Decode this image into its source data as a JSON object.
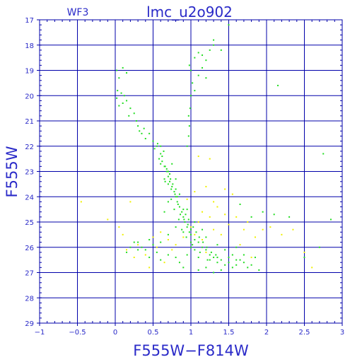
{
  "chart_data": {
    "type": "scatter",
    "title": "lmc_u2o902",
    "chip": "WF3",
    "xlabel": "F555W−F814W",
    "ylabel": "F555W",
    "xlim": [
      -1,
      3
    ],
    "ylim": [
      29,
      17
    ],
    "y_inverted": true,
    "xticks": [
      "−1",
      "−0.5",
      "0",
      "0.5",
      "1",
      "1.5",
      "2",
      "2.5",
      "3"
    ],
    "yticks": [
      "17",
      "18",
      "19",
      "20",
      "21",
      "22",
      "23",
      "24",
      "25",
      "26",
      "27",
      "28",
      "29"
    ],
    "grid": true,
    "colors": {
      "frame": "#0000aa",
      "text": "#2a2ac8",
      "main": "#22dd22",
      "faint": "#f0f000"
    },
    "series": [
      {
        "color": "#22dd22",
        "points": [
          [
            0.02,
            19.0
          ],
          [
            0.1,
            18.9
          ],
          [
            0.15,
            19.1
          ],
          [
            0.05,
            19.3
          ],
          [
            0.03,
            19.8
          ],
          [
            0.08,
            19.9
          ],
          [
            0.12,
            20.0
          ],
          [
            0.02,
            20.1
          ],
          [
            0.1,
            20.3
          ],
          [
            0.15,
            20.2
          ],
          [
            0.05,
            20.4
          ],
          [
            0.2,
            20.5
          ],
          [
            0.18,
            20.8
          ],
          [
            0.25,
            20.7
          ],
          [
            0.28,
            21.0
          ],
          [
            0.3,
            21.2
          ],
          [
            0.35,
            21.5
          ],
          [
            0.32,
            21.4
          ],
          [
            0.4,
            21.7
          ],
          [
            0.38,
            21.3
          ],
          [
            0.45,
            21.5
          ],
          [
            0.5,
            21.8
          ],
          [
            0.52,
            22.1
          ],
          [
            0.55,
            22.0
          ],
          [
            0.6,
            22.3
          ],
          [
            0.58,
            22.5
          ],
          [
            0.62,
            22.6
          ],
          [
            0.65,
            22.8
          ],
          [
            0.6,
            22.7
          ],
          [
            0.68,
            23.0
          ],
          [
            0.7,
            23.2
          ],
          [
            0.65,
            23.3
          ],
          [
            0.72,
            23.4
          ],
          [
            0.75,
            23.6
          ],
          [
            0.7,
            23.5
          ],
          [
            0.78,
            23.8
          ],
          [
            0.8,
            24.0
          ],
          [
            0.74,
            24.1
          ],
          [
            0.82,
            24.2
          ],
          [
            0.85,
            24.4
          ],
          [
            0.78,
            24.5
          ],
          [
            0.88,
            24.6
          ],
          [
            0.9,
            24.8
          ],
          [
            0.84,
            24.9
          ],
          [
            0.92,
            25.0
          ],
          [
            0.95,
            25.2
          ],
          [
            0.88,
            25.3
          ],
          [
            0.98,
            25.4
          ],
          [
            1.0,
            25.5
          ],
          [
            0.94,
            25.6
          ],
          [
            1.05,
            25.7
          ],
          [
            1.1,
            25.8
          ],
          [
            1.02,
            25.9
          ],
          [
            1.15,
            26.0
          ],
          [
            1.2,
            26.1
          ],
          [
            1.12,
            26.2
          ],
          [
            1.25,
            26.3
          ],
          [
            1.3,
            26.4
          ],
          [
            1.22,
            26.5
          ],
          [
            1.35,
            26.6
          ],
          [
            1.4,
            26.5
          ],
          [
            1.45,
            26.7
          ],
          [
            1.5,
            26.6
          ],
          [
            1.55,
            26.8
          ],
          [
            1.6,
            26.7
          ],
          [
            1.65,
            26.5
          ],
          [
            1.7,
            26.6
          ],
          [
            1.75,
            26.8
          ],
          [
            1.8,
            26.7
          ],
          [
            1.9,
            26.9
          ],
          [
            0.68,
            22.9
          ],
          [
            0.72,
            23.1
          ],
          [
            0.66,
            23.4
          ],
          [
            0.74,
            23.7
          ],
          [
            0.79,
            23.9
          ],
          [
            0.83,
            24.3
          ],
          [
            0.86,
            24.7
          ],
          [
            0.91,
            24.9
          ],
          [
            0.96,
            25.1
          ],
          [
            1.0,
            25.3
          ],
          [
            0.62,
            22.4
          ],
          [
            0.64,
            22.2
          ],
          [
            0.6,
            22.0
          ],
          [
            0.56,
            21.9
          ],
          [
            0.66,
            22.8
          ],
          [
            0.7,
            23.0
          ],
          [
            0.73,
            23.3
          ],
          [
            0.76,
            23.5
          ],
          [
            0.8,
            23.7
          ],
          [
            0.82,
            24.0
          ],
          [
            0.9,
            24.5
          ],
          [
            0.93,
            24.7
          ],
          [
            0.97,
            24.9
          ],
          [
            1.03,
            25.2
          ],
          [
            1.07,
            25.4
          ],
          [
            1.11,
            25.6
          ],
          [
            1.16,
            25.8
          ],
          [
            1.21,
            26.0
          ],
          [
            1.27,
            26.2
          ],
          [
            1.33,
            26.3
          ],
          [
            0.75,
            22.7
          ],
          [
            0.8,
            23.3
          ],
          [
            0.85,
            23.9
          ],
          [
            0.7,
            24.2
          ],
          [
            0.95,
            24.5
          ],
          [
            1.05,
            25.0
          ],
          [
            0.9,
            25.4
          ],
          [
            1.15,
            25.3
          ],
          [
            1.2,
            25.6
          ],
          [
            1.0,
            26.0
          ],
          [
            0.65,
            24.6
          ],
          [
            0.8,
            25.2
          ],
          [
            0.7,
            25.5
          ],
          [
            0.6,
            25.8
          ],
          [
            0.5,
            25.9
          ],
          [
            0.4,
            26.1
          ],
          [
            0.3,
            25.8
          ],
          [
            0.35,
            26.0
          ],
          [
            0.45,
            25.7
          ],
          [
            0.55,
            26.2
          ],
          [
            1.35,
            25.9
          ],
          [
            1.45,
            26.1
          ],
          [
            1.55,
            26.3
          ],
          [
            1.6,
            26.0
          ],
          [
            1.7,
            26.3
          ],
          [
            1.85,
            26.4
          ],
          [
            1.4,
            26.9
          ],
          [
            1.3,
            27.0
          ],
          [
            1.2,
            26.8
          ],
          [
            1.1,
            26.9
          ],
          [
            0.95,
            22.0
          ],
          [
            0.97,
            21.6
          ],
          [
            0.98,
            21.2
          ],
          [
            0.97,
            20.8
          ],
          [
            0.99,
            20.5
          ],
          [
            1.0,
            20.0
          ],
          [
            1.02,
            19.5
          ],
          [
            1.0,
            19.0
          ],
          [
            0.98,
            18.8
          ],
          [
            1.05,
            18.5
          ],
          [
            1.1,
            18.3
          ],
          [
            1.15,
            18.4
          ],
          [
            1.2,
            18.6
          ],
          [
            1.3,
            18.0
          ],
          [
            1.3,
            17.8
          ],
          [
            1.25,
            18.2
          ],
          [
            1.15,
            18.9
          ],
          [
            1.1,
            19.2
          ],
          [
            1.05,
            19.8
          ],
          [
            1.2,
            19.3
          ],
          [
            1.5,
            17.2
          ],
          [
            1.4,
            18.2
          ],
          [
            2.15,
            19.6
          ],
          [
            2.75,
            22.3
          ],
          [
            2.85,
            24.9
          ],
          [
            2.1,
            24.7
          ],
          [
            1.95,
            24.6
          ],
          [
            2.3,
            24.8
          ],
          [
            1.65,
            24.3
          ],
          [
            1.8,
            24.8
          ],
          [
            0.25,
            25.8
          ],
          [
            0.2,
            26.0
          ],
          [
            0.15,
            26.2
          ],
          [
            0.3,
            26.1
          ],
          [
            0.45,
            26.4
          ],
          [
            0.6,
            26.5
          ],
          [
            0.7,
            26.3
          ],
          [
            0.8,
            26.4
          ],
          [
            0.85,
            26.6
          ],
          [
            0.9,
            26.8
          ],
          [
            1.0,
            25.8
          ],
          [
            1.05,
            26.1
          ],
          [
            0.95,
            26.3
          ],
          [
            1.1,
            26.4
          ],
          [
            1.25,
            26.5
          ],
          [
            1.35,
            26.4
          ],
          [
            1.5,
            26.4
          ],
          [
            1.6,
            26.5
          ],
          [
            2.5,
            26.4
          ],
          [
            2.7,
            26.0
          ]
        ]
      },
      {
        "color": "#f0f000",
        "points": [
          [
            -0.45,
            24.2
          ],
          [
            -0.1,
            24.9
          ],
          [
            0.05,
            25.2
          ],
          [
            0.1,
            25.5
          ],
          [
            0.2,
            24.2
          ],
          [
            0.3,
            25.9
          ],
          [
            0.15,
            26.1
          ],
          [
            0.25,
            26.4
          ],
          [
            0.4,
            26.3
          ],
          [
            0.5,
            25.6
          ],
          [
            0.6,
            25.4
          ],
          [
            0.7,
            25.7
          ],
          [
            0.55,
            26.0
          ],
          [
            0.8,
            25.9
          ],
          [
            0.9,
            25.6
          ],
          [
            1.0,
            25.2
          ],
          [
            1.1,
            25.0
          ],
          [
            1.15,
            24.6
          ],
          [
            1.25,
            24.8
          ],
          [
            1.3,
            25.3
          ],
          [
            1.35,
            24.4
          ],
          [
            1.45,
            24.7
          ],
          [
            1.5,
            25.1
          ],
          [
            1.6,
            24.8
          ],
          [
            1.7,
            25.3
          ],
          [
            1.75,
            25.0
          ],
          [
            1.85,
            25.6
          ],
          [
            1.95,
            25.3
          ],
          [
            2.05,
            25.2
          ],
          [
            2.2,
            25.5
          ],
          [
            2.35,
            25.3
          ],
          [
            2.5,
            26.2
          ],
          [
            2.6,
            26.8
          ],
          [
            1.55,
            23.9
          ],
          [
            1.45,
            23.7
          ],
          [
            1.25,
            22.5
          ],
          [
            1.1,
            22.4
          ],
          [
            1.2,
            23.6
          ],
          [
            1.3,
            24.2
          ],
          [
            1.05,
            23.8
          ],
          [
            0.95,
            24.1
          ],
          [
            1.4,
            25.5
          ],
          [
            1.15,
            25.7
          ],
          [
            0.75,
            26.1
          ],
          [
            0.65,
            26.6
          ],
          [
            0.45,
            26.8
          ],
          [
            1.8,
            26.4
          ],
          [
            1.65,
            25.9
          ],
          [
            1.2,
            26.2
          ],
          [
            1.05,
            25.5
          ]
        ]
      }
    ]
  }
}
